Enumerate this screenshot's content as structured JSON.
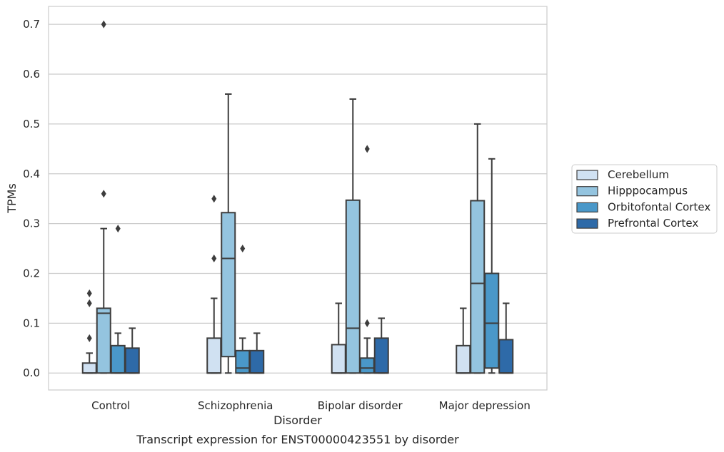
{
  "chart_data": {
    "type": "box",
    "title": "",
    "caption": "Transcript expression for ENST00000423551 by disorder",
    "xlabel": "Disorder",
    "ylabel": "TPMs",
    "ylim": [
      -0.034,
      0.736
    ],
    "yticks": [
      "0.0",
      "0.1",
      "0.2",
      "0.3",
      "0.4",
      "0.5",
      "0.6",
      "0.7"
    ],
    "grid": "horizontal",
    "legend_position": "right",
    "categories": [
      "Control",
      "Schizophrenia",
      "Bipolar disorder",
      "Major depression"
    ],
    "series": [
      {
        "name": "Cerebellum",
        "color": "#d0e1f2",
        "boxes": [
          {
            "whislo": 0.0,
            "q1": 0.0,
            "med": 0.0,
            "q3": 0.02,
            "whishi": 0.04,
            "fliers": [
              0.07,
              0.14,
              0.16
            ]
          },
          {
            "whislo": 0.0,
            "q1": 0.0,
            "med": 0.0,
            "q3": 0.07,
            "whishi": 0.15,
            "fliers": [
              0.23,
              0.35
            ]
          },
          {
            "whislo": 0.0,
            "q1": 0.0,
            "med": 0.0,
            "q3": 0.057,
            "whishi": 0.14,
            "fliers": []
          },
          {
            "whislo": 0.0,
            "q1": 0.0,
            "med": 0.0,
            "q3": 0.055,
            "whishi": 0.13,
            "fliers": []
          }
        ]
      },
      {
        "name": "Hipppocampus",
        "color": "#94c4df",
        "boxes": [
          {
            "whislo": 0.0,
            "q1": 0.0,
            "med": 0.12,
            "q3": 0.13,
            "whishi": 0.29,
            "fliers": [
              0.36,
              0.7
            ]
          },
          {
            "whislo": 0.0,
            "q1": 0.033,
            "med": 0.23,
            "q3": 0.322,
            "whishi": 0.56,
            "fliers": []
          },
          {
            "whislo": 0.0,
            "q1": 0.0,
            "med": 0.09,
            "q3": 0.347,
            "whishi": 0.55,
            "fliers": []
          },
          {
            "whislo": 0.0,
            "q1": 0.0,
            "med": 0.18,
            "q3": 0.346,
            "whishi": 0.5,
            "fliers": []
          }
        ]
      },
      {
        "name": "Orbitofontal Cortex",
        "color": "#4a98c9",
        "boxes": [
          {
            "whislo": 0.0,
            "q1": 0.0,
            "med": 0.0,
            "q3": 0.055,
            "whishi": 0.08,
            "fliers": [
              0.29
            ]
          },
          {
            "whislo": 0.0,
            "q1": 0.0,
            "med": 0.01,
            "q3": 0.045,
            "whishi": 0.07,
            "fliers": [
              0.25
            ]
          },
          {
            "whislo": 0.0,
            "q1": 0.0,
            "med": 0.01,
            "q3": 0.03,
            "whishi": 0.07,
            "fliers": [
              0.1,
              0.45
            ]
          },
          {
            "whislo": 0.0,
            "q1": 0.01,
            "med": 0.1,
            "q3": 0.2,
            "whishi": 0.43,
            "fliers": []
          }
        ]
      },
      {
        "name": "Prefrontal Cortex",
        "color": "#2e6aa8",
        "boxes": [
          {
            "whislo": 0.0,
            "q1": 0.0,
            "med": 0.0,
            "q3": 0.05,
            "whishi": 0.09,
            "fliers": []
          },
          {
            "whislo": 0.0,
            "q1": 0.0,
            "med": 0.0,
            "q3": 0.045,
            "whishi": 0.08,
            "fliers": []
          },
          {
            "whislo": 0.0,
            "q1": 0.0,
            "med": 0.0,
            "q3": 0.07,
            "whishi": 0.11,
            "fliers": []
          },
          {
            "whislo": 0.0,
            "q1": 0.0,
            "med": 0.0,
            "q3": 0.067,
            "whishi": 0.14,
            "fliers": []
          }
        ]
      }
    ]
  }
}
